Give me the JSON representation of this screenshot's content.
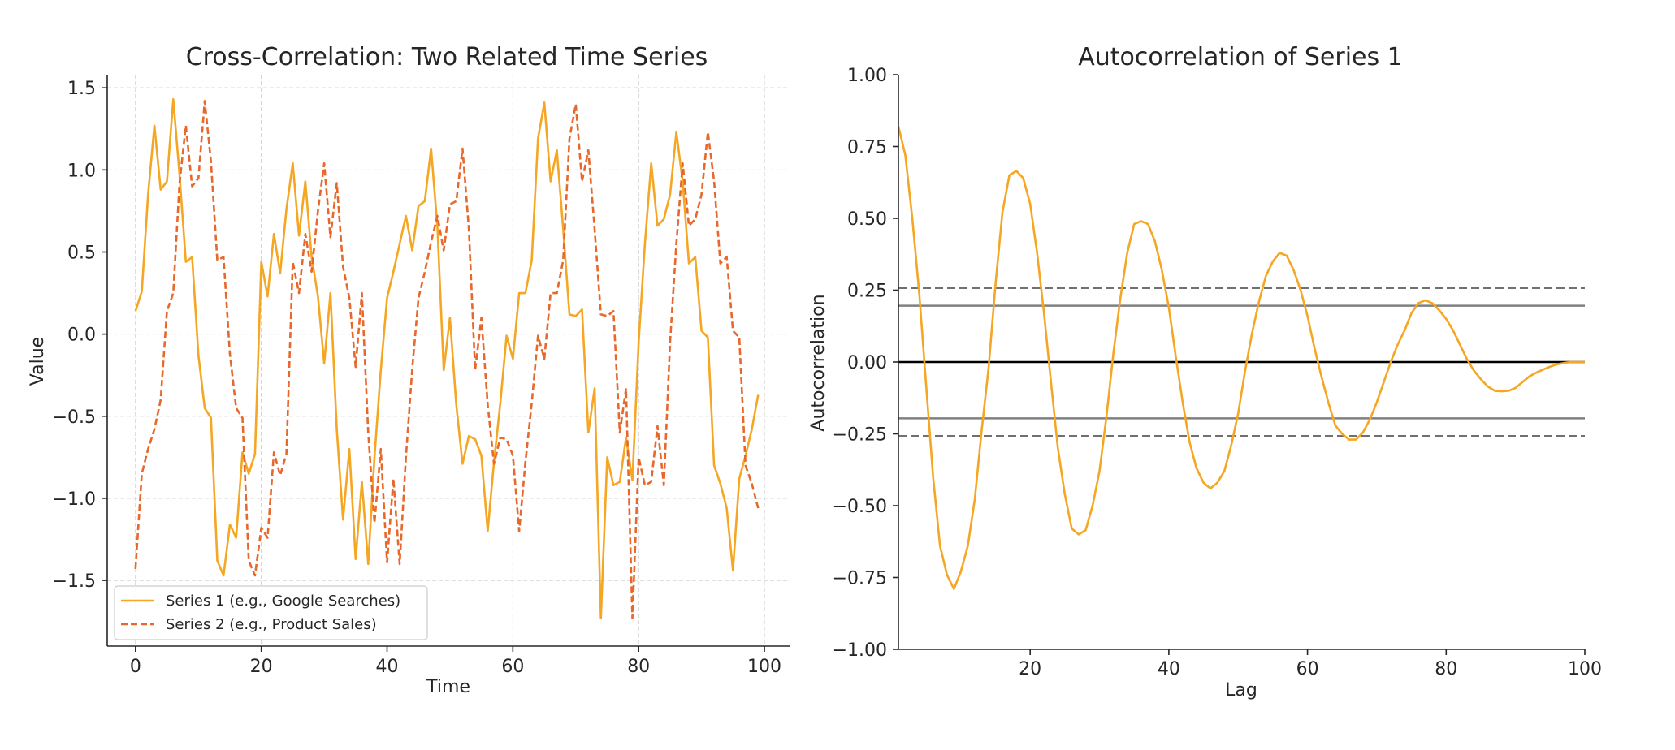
{
  "colors": {
    "series1": "#f5a623",
    "series2": "#e8672a",
    "ref_zero": "#000000",
    "ref_solid": "#808080",
    "ref_dashed": "#707070",
    "grid": "#cccccc",
    "text": "#262626"
  },
  "chart_data": [
    {
      "type": "line",
      "title": "Cross-Correlation: Two Related Time Series",
      "xlabel": "Time",
      "ylabel": "Value",
      "xlim": [
        -4.5,
        104
      ],
      "ylim": [
        -1.9,
        1.58
      ],
      "xticks": [
        0,
        20,
        40,
        60,
        80,
        100
      ],
      "yticks": [
        -1.5,
        -1.0,
        -0.5,
        0.0,
        0.5,
        1.0,
        1.5
      ],
      "ytick_labels": [
        "−1.5",
        "−1.0",
        "−0.5",
        "0.0",
        "0.5",
        "1.0",
        "1.5"
      ],
      "grid": true,
      "legend": "lower-left",
      "series": [
        {
          "name": "Series 1 (e.g., Google Searches)",
          "style": "solid",
          "x": [
            0,
            1,
            2,
            3,
            4,
            5,
            6,
            7,
            8,
            9,
            10,
            11,
            12,
            13,
            14,
            15,
            16,
            17,
            18,
            19,
            20,
            21,
            22,
            23,
            24,
            25,
            26,
            27,
            28,
            29,
            30,
            31,
            32,
            33,
            34,
            35,
            36,
            37,
            38,
            39,
            40,
            41,
            42,
            43,
            44,
            45,
            46,
            47,
            48,
            49,
            50,
            51,
            52,
            53,
            54,
            55,
            56,
            57,
            58,
            59,
            60,
            61,
            62,
            63,
            64,
            65,
            66,
            67,
            68,
            69,
            70,
            71,
            72,
            73,
            74,
            75,
            76,
            77,
            78,
            79,
            80,
            81,
            82,
            83,
            84,
            85,
            86,
            87,
            88,
            89,
            90,
            91,
            92,
            93,
            94,
            95,
            96,
            97,
            98,
            99
          ],
          "y": [
            0.14,
            0.26,
            0.85,
            1.27,
            0.88,
            0.93,
            1.43,
            0.97,
            0.44,
            0.47,
            -0.13,
            -0.45,
            -0.51,
            -1.38,
            -1.47,
            -1.16,
            -1.24,
            -0.72,
            -0.85,
            -0.73,
            0.44,
            0.23,
            0.61,
            0.37,
            0.76,
            1.04,
            0.6,
            0.93,
            0.47,
            0.23,
            -0.18,
            0.25,
            -0.58,
            -1.13,
            -0.7,
            -1.37,
            -0.9,
            -1.4,
            -0.75,
            -0.22,
            0.22,
            0.38,
            0.55,
            0.72,
            0.51,
            0.78,
            0.81,
            1.13,
            0.65,
            -0.22,
            0.1,
            -0.43,
            -0.79,
            -0.62,
            -0.64,
            -0.74,
            -1.2,
            -0.78,
            -0.42,
            -0.01,
            -0.15,
            0.25,
            0.25,
            0.45,
            1.19,
            1.41,
            0.93,
            1.12,
            0.64,
            0.12,
            0.11,
            0.15,
            -0.6,
            -0.33,
            -1.73,
            -0.75,
            -0.92,
            -0.9,
            -0.63,
            -0.89,
            -0.05,
            0.55,
            1.04,
            0.66,
            0.7,
            0.85,
            1.23,
            0.93,
            0.43,
            0.47,
            0.02,
            -0.02,
            -0.8,
            -0.91,
            -1.06,
            -1.44,
            -0.88,
            -0.74,
            -0.58,
            -0.37
          ]
        },
        {
          "name": "Series 2 (e.g., Product Sales)",
          "style": "dashed",
          "x": [
            0,
            1,
            2,
            3,
            4,
            5,
            6,
            7,
            8,
            9,
            10,
            11,
            12,
            13,
            14,
            15,
            16,
            17,
            18,
            19,
            20,
            21,
            22,
            23,
            24,
            25,
            26,
            27,
            28,
            29,
            30,
            31,
            32,
            33,
            34,
            35,
            36,
            37,
            38,
            39,
            40,
            41,
            42,
            43,
            44,
            45,
            46,
            47,
            48,
            49,
            50,
            51,
            52,
            53,
            54,
            55,
            56,
            57,
            58,
            59,
            60,
            61,
            62,
            63,
            64,
            65,
            66,
            67,
            68,
            69,
            70,
            71,
            72,
            73,
            74,
            75,
            76,
            77,
            78,
            79,
            80,
            81,
            82,
            83,
            84,
            85,
            86,
            87,
            88,
            89,
            90,
            91,
            92,
            93,
            94,
            95,
            96,
            97,
            98,
            99
          ],
          "y": [
            -1.43,
            -0.85,
            -0.7,
            -0.58,
            -0.4,
            0.14,
            0.25,
            0.92,
            1.27,
            0.9,
            0.95,
            1.42,
            1.05,
            0.45,
            0.47,
            -0.12,
            -0.45,
            -0.51,
            -1.38,
            -1.47,
            -1.18,
            -1.24,
            -0.72,
            -0.86,
            -0.73,
            0.44,
            0.25,
            0.61,
            0.38,
            0.75,
            1.04,
            0.59,
            0.92,
            0.41,
            0.22,
            -0.2,
            0.25,
            -0.6,
            -1.15,
            -0.7,
            -1.39,
            -0.88,
            -1.4,
            -0.75,
            -0.21,
            0.22,
            0.38,
            0.56,
            0.72,
            0.51,
            0.79,
            0.81,
            1.13,
            0.64,
            -0.22,
            0.1,
            -0.43,
            -0.79,
            -0.63,
            -0.64,
            -0.74,
            -1.2,
            -0.78,
            -0.42,
            -0.01,
            -0.15,
            0.25,
            0.25,
            0.45,
            1.19,
            1.4,
            0.93,
            1.12,
            0.64,
            0.12,
            0.11,
            0.14,
            -0.6,
            -0.33,
            -1.73,
            -0.75,
            -0.92,
            -0.9,
            -0.56,
            -0.92,
            -0.05,
            0.55,
            1.04,
            0.66,
            0.7,
            0.85,
            1.23,
            0.93,
            0.43,
            0.47,
            0.02,
            -0.02,
            -0.8,
            -0.91,
            -1.06
          ]
        }
      ]
    },
    {
      "type": "line",
      "title": "Autocorrelation of Series 1",
      "xlabel": "Lag",
      "ylabel": "Autocorrelation",
      "xlim": [
        1,
        100
      ],
      "ylim": [
        -1.0,
        1.0
      ],
      "xticks": [
        20,
        40,
        60,
        80,
        100
      ],
      "yticks": [
        -1.0,
        -0.75,
        -0.5,
        -0.25,
        0.0,
        0.25,
        0.5,
        0.75,
        1.0
      ],
      "ytick_labels": [
        "−1.00",
        "−0.75",
        "−0.50",
        "−0.25",
        "0.00",
        "0.25",
        "0.50",
        "0.75",
        "1.00"
      ],
      "grid": false,
      "reference_lines": [
        {
          "y": 0.0,
          "style": "solid",
          "color": "#000000"
        },
        {
          "y": 0.196,
          "style": "solid",
          "color": "#808080"
        },
        {
          "y": -0.196,
          "style": "solid",
          "color": "#808080"
        },
        {
          "y": 0.258,
          "style": "dashed",
          "color": "#707070"
        },
        {
          "y": -0.258,
          "style": "dashed",
          "color": "#707070"
        }
      ],
      "series": [
        {
          "style": "solid",
          "x": [
            1,
            2,
            3,
            4,
            5,
            6,
            7,
            8,
            9,
            10,
            11,
            12,
            13,
            14,
            15,
            16,
            17,
            18,
            19,
            20,
            21,
            22,
            23,
            24,
            25,
            26,
            27,
            28,
            29,
            30,
            31,
            32,
            33,
            34,
            35,
            36,
            37,
            38,
            39,
            40,
            41,
            42,
            43,
            44,
            45,
            46,
            47,
            48,
            49,
            50,
            51,
            52,
            53,
            54,
            55,
            56,
            57,
            58,
            59,
            60,
            61,
            62,
            63,
            64,
            65,
            66,
            67,
            68,
            69,
            70,
            71,
            72,
            73,
            74,
            75,
            76,
            77,
            78,
            79,
            80,
            81,
            82,
            83,
            84,
            85,
            86,
            87,
            88,
            89,
            90,
            91,
            92,
            93,
            94,
            95,
            96,
            97,
            98,
            99,
            100
          ],
          "y": [
            0.82,
            0.72,
            0.5,
            0.24,
            -0.08,
            -0.4,
            -0.64,
            -0.74,
            -0.79,
            -0.73,
            -0.64,
            -0.48,
            -0.24,
            -0.02,
            0.27,
            0.52,
            0.65,
            0.665,
            0.64,
            0.55,
            0.38,
            0.17,
            -0.07,
            -0.3,
            -0.46,
            -0.58,
            -0.6,
            -0.585,
            -0.5,
            -0.38,
            -0.19,
            0.03,
            0.22,
            0.38,
            0.48,
            0.49,
            0.48,
            0.42,
            0.32,
            0.19,
            0.02,
            -0.14,
            -0.28,
            -0.37,
            -0.42,
            -0.44,
            -0.42,
            -0.38,
            -0.29,
            -0.18,
            -0.03,
            0.1,
            0.21,
            0.3,
            0.35,
            0.38,
            0.37,
            0.32,
            0.25,
            0.16,
            0.05,
            -0.05,
            -0.14,
            -0.22,
            -0.25,
            -0.27,
            -0.27,
            -0.245,
            -0.2,
            -0.14,
            -0.07,
            0.0,
            0.06,
            0.11,
            0.17,
            0.205,
            0.215,
            0.205,
            0.18,
            0.15,
            0.11,
            0.06,
            0.01,
            -0.03,
            -0.06,
            -0.085,
            -0.1,
            -0.102,
            -0.1,
            -0.09,
            -0.07,
            -0.05,
            -0.037,
            -0.026,
            -0.016,
            -0.008,
            -0.003,
            0.0,
            0.0,
            0.0
          ]
        }
      ]
    }
  ]
}
